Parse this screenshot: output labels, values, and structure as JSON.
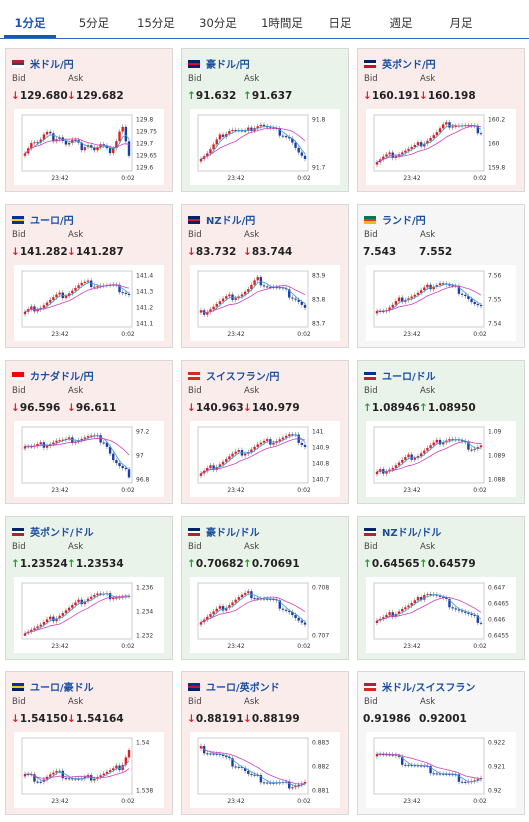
{
  "tabs": [
    {
      "label": "1分足",
      "active": true
    },
    {
      "label": "5分足",
      "active": false
    },
    {
      "label": "15分足",
      "active": false
    },
    {
      "label": "30分足",
      "active": false
    },
    {
      "label": "1時間足",
      "active": false
    },
    {
      "label": "日足",
      "active": false
    },
    {
      "label": "週足",
      "active": false
    },
    {
      "label": "月足",
      "active": false
    }
  ],
  "labels": {
    "bid": "Bid",
    "ask": "Ask"
  },
  "pairs": [
    {
      "name": "米ドル/円",
      "bg": "pink",
      "flag": "us-flag",
      "bid": "129.680",
      "ask": "129.682",
      "bid_dir": "down",
      "ask_dir": "down",
      "chart": {
        "y_ticks": [
          "129.8",
          "129.75",
          "129.7",
          "129.65",
          "129.6"
        ],
        "x_ticks": [
          "23:42",
          "0:02"
        ],
        "shape": [
          0.35,
          0.55,
          0.5,
          0.7,
          0.6,
          0.65,
          0.45,
          0.55,
          0.4,
          0.5,
          0.35,
          0.45,
          0.3,
          0.5,
          0.9,
          0.2
        ]
      }
    },
    {
      "name": "豪ドル/円",
      "bg": "green",
      "flag": "au-flag",
      "bid": "91.632",
      "ask": "91.637",
      "bid_dir": "up",
      "ask_dir": "up",
      "chart": {
        "y_ticks": [
          "91.8",
          "91.7"
        ],
        "x_ticks": [
          "23:42",
          "0:02"
        ],
        "shape": [
          0.2,
          0.3,
          0.5,
          0.7,
          0.8,
          0.75,
          0.7,
          0.85,
          0.9,
          0.8,
          0.75,
          0.7,
          0.6,
          0.3,
          0.1
        ]
      }
    },
    {
      "name": "英ポンド/円",
      "bg": "pink",
      "flag": "gb-flag",
      "bid": "160.191",
      "ask": "160.198",
      "bid_dir": "down",
      "ask_dir": "down",
      "chart": {
        "y_ticks": [
          "160.2",
          "160",
          "159.8"
        ],
        "x_ticks": [
          "23:42",
          "0:02"
        ],
        "shape": [
          0.1,
          0.2,
          0.25,
          0.3,
          0.35,
          0.4,
          0.5,
          0.6,
          0.7,
          0.85,
          0.9,
          0.88,
          0.85,
          0.8,
          0.75
        ]
      }
    },
    {
      "name": "ユーロ/円",
      "bg": "pink",
      "flag": "eu-flag",
      "bid": "141.282",
      "ask": "141.287",
      "bid_dir": "down",
      "ask_dir": "down",
      "chart": {
        "y_ticks": [
          "141.4",
          "141.3",
          "141.2",
          "141.1"
        ],
        "x_ticks": [
          "23:42",
          "0:02"
        ],
        "shape": [
          0.2,
          0.3,
          0.35,
          0.45,
          0.55,
          0.6,
          0.7,
          0.8,
          0.82,
          0.8,
          0.78,
          0.75,
          0.7,
          0.6
        ]
      }
    },
    {
      "name": "NZドル/円",
      "bg": "pink",
      "flag": "nz-flag",
      "bid": "83.732",
      "ask": "83.744",
      "bid_dir": "down",
      "ask_dir": "down",
      "chart": {
        "y_ticks": [
          "83.9",
          "83.8",
          "83.7"
        ],
        "x_ticks": [
          "23:42",
          "0:02"
        ],
        "shape": [
          0.2,
          0.3,
          0.4,
          0.5,
          0.55,
          0.6,
          0.7,
          0.9,
          0.8,
          0.75,
          0.7,
          0.6,
          0.5,
          0.3
        ]
      }
    },
    {
      "name": "ランド/円",
      "bg": "white",
      "flag": "za-flag",
      "bid": "7.543",
      "ask": "7.552",
      "bid_dir": "none",
      "ask_dir": "none",
      "chart": {
        "y_ticks": [
          "7.56",
          "7.55",
          "7.54"
        ],
        "x_ticks": [
          "23:42",
          "0:02"
        ],
        "shape": [
          0.3,
          0.25,
          0.35,
          0.5,
          0.55,
          0.6,
          0.7,
          0.8,
          0.85,
          0.75,
          0.7,
          0.6,
          0.4,
          0.3
        ]
      }
    },
    {
      "name": "カナダドル/円",
      "bg": "pink",
      "flag": "ca-flag",
      "bid": "96.596",
      "ask": "96.611",
      "bid_dir": "down",
      "ask_dir": "down",
      "chart": {
        "y_ticks": [
          "97.2",
          "97",
          "96.8"
        ],
        "x_ticks": [
          "23:42",
          "0:02"
        ],
        "shape": [
          0.7,
          0.65,
          0.7,
          0.75,
          0.8,
          0.78,
          0.82,
          0.85,
          0.88,
          0.85,
          0.8,
          0.4,
          0.2,
          0.1
        ]
      }
    },
    {
      "name": "スイスフラン/円",
      "bg": "pink",
      "flag": "ch-flag",
      "bid": "140.963",
      "ask": "140.979",
      "bid_dir": "down",
      "ask_dir": "down",
      "chart": {
        "y_ticks": [
          "141",
          "140.9",
          "140.8",
          "140.7"
        ],
        "x_ticks": [
          "23:42",
          "0:02"
        ],
        "shape": [
          0.1,
          0.2,
          0.3,
          0.4,
          0.5,
          0.55,
          0.6,
          0.7,
          0.75,
          0.8,
          0.85,
          0.9,
          0.85,
          0.7
        ]
      }
    },
    {
      "name": "ユーロ/ドル",
      "bg": "green",
      "flag": "eu-us-flag",
      "bid": "1.08946",
      "ask": "1.08950",
      "bid_dir": "up",
      "ask_dir": "up",
      "chart": {
        "y_ticks": [
          "1.09",
          "1.089",
          "1.088"
        ],
        "x_ticks": [
          "23:42",
          "0:02"
        ],
        "shape": [
          0.1,
          0.2,
          0.25,
          0.35,
          0.45,
          0.5,
          0.6,
          0.7,
          0.8,
          0.85,
          0.8,
          0.7,
          0.65,
          0.7
        ]
      }
    },
    {
      "name": "英ポンド/ドル",
      "bg": "green",
      "flag": "gb-us-flag",
      "bid": "1.23524",
      "ask": "1.23534",
      "bid_dir": "up",
      "ask_dir": "up",
      "chart": {
        "y_ticks": [
          "1.236",
          "1.234",
          "1.232"
        ],
        "x_ticks": [
          "23:42",
          "0:02"
        ],
        "shape": [
          0.1,
          0.15,
          0.2,
          0.3,
          0.4,
          0.5,
          0.6,
          0.7,
          0.8,
          0.85,
          0.8,
          0.82,
          0.8,
          0.78
        ]
      }
    },
    {
      "name": "豪ドル/ドル",
      "bg": "green",
      "flag": "au-us-flag",
      "bid": "0.70682",
      "ask": "0.70691",
      "bid_dir": "up",
      "ask_dir": "up",
      "chart": {
        "y_ticks": [
          "0.708",
          "0.707"
        ],
        "x_ticks": [
          "23:42",
          "0:02"
        ],
        "shape": [
          0.3,
          0.4,
          0.5,
          0.6,
          0.7,
          0.8,
          0.85,
          0.8,
          0.75,
          0.7,
          0.6,
          0.5,
          0.3,
          0.15
        ]
      }
    },
    {
      "name": "NZドル/ドル",
      "bg": "green",
      "flag": "nz-us-flag",
      "bid": "0.64565",
      "ask": "0.64579",
      "bid_dir": "up",
      "ask_dir": "up",
      "chart": {
        "y_ticks": [
          "0.647",
          "0.6465",
          "0.646",
          "0.6455"
        ],
        "x_ticks": [
          "23:42",
          "0:02"
        ],
        "shape": [
          0.3,
          0.35,
          0.45,
          0.55,
          0.6,
          0.7,
          0.9,
          0.85,
          0.75,
          0.65,
          0.55,
          0.45,
          0.35,
          0.3
        ]
      }
    },
    {
      "name": "ユーロ/豪ドル",
      "bg": "pink",
      "flag": "eu-au-flag",
      "bid": "1.54150",
      "ask": "1.54164",
      "bid_dir": "down",
      "ask_dir": "down",
      "chart": {
        "y_ticks": [
          "1.54",
          "1.538"
        ],
        "x_ticks": [
          "23:42",
          "0:02"
        ],
        "shape": [
          0.3,
          0.25,
          0.2,
          0.3,
          0.35,
          0.3,
          0.25,
          0.2,
          0.25,
          0.3,
          0.35,
          0.4,
          0.5,
          0.85
        ]
      }
    },
    {
      "name": "ユーロ/英ポンド",
      "bg": "pink",
      "flag": "eu-gb-flag",
      "bid": "0.88191",
      "ask": "0.88199",
      "bid_dir": "down",
      "ask_dir": "down",
      "chart": {
        "y_ticks": [
          "0.883",
          "0.882",
          "0.881"
        ],
        "x_ticks": [
          "23:42",
          "0:02"
        ],
        "shape": [
          0.85,
          0.8,
          0.75,
          0.65,
          0.55,
          0.5,
          0.3,
          0.25,
          0.2,
          0.15,
          0.12,
          0.1,
          0.12,
          0.15
        ]
      }
    },
    {
      "name": "米ドル/スイスフラン",
      "bg": "white",
      "flag": "us-ch-flag",
      "bid": "0.91986",
      "ask": "0.92001",
      "bid_dir": "none",
      "ask_dir": "none",
      "chart": {
        "y_ticks": [
          "0.922",
          "0.921",
          "0.92"
        ],
        "x_ticks": [
          "23:42",
          "0:02"
        ],
        "shape": [
          0.8,
          0.75,
          0.7,
          0.6,
          0.55,
          0.5,
          0.45,
          0.4,
          0.35,
          0.3,
          0.25,
          0.2,
          0.18,
          0.2
        ]
      }
    }
  ]
}
